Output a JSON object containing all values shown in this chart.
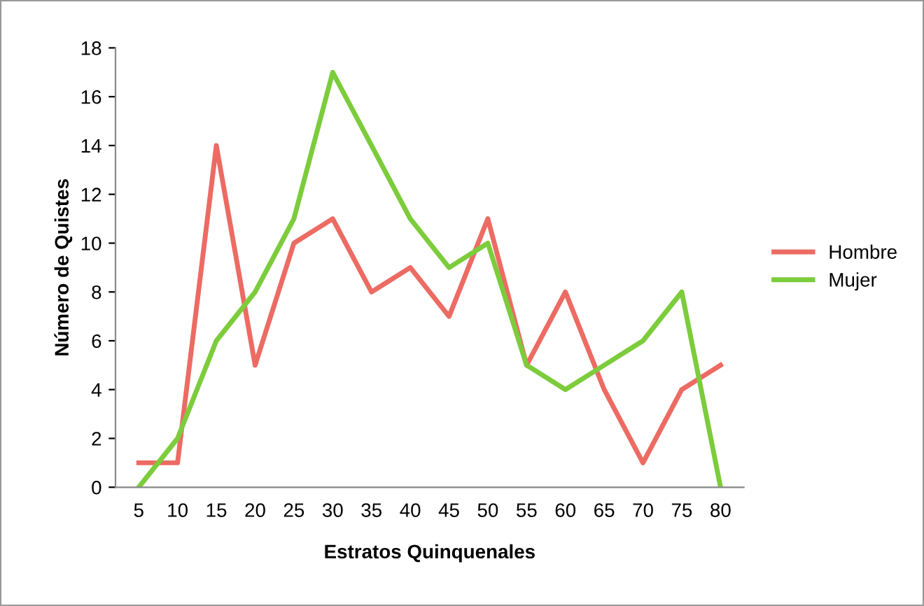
{
  "chart_data": {
    "type": "line",
    "xlabel": "Estratos Quinquenales",
    "ylabel": "Número de Quistes",
    "categories": [
      "5",
      "10",
      "15",
      "20",
      "25",
      "30",
      "35",
      "40",
      "45",
      "50",
      "55",
      "60",
      "65",
      "70",
      "75",
      "80"
    ],
    "series": [
      {
        "name": "Hombre",
        "color": "#ec6b63",
        "values": [
          1,
          1,
          14,
          5,
          10,
          11,
          8,
          9,
          7,
          11,
          5,
          8,
          4,
          1,
          4,
          5
        ]
      },
      {
        "name": "Mujer",
        "color": "#7ccc3c",
        "values": [
          0,
          2,
          6,
          8,
          11,
          17,
          14,
          11,
          9,
          10,
          5,
          4,
          5,
          6,
          8,
          0
        ]
      }
    ],
    "ylim": [
      0,
      18
    ],
    "yticks": [
      0,
      2,
      4,
      6,
      8,
      10,
      12,
      14,
      16,
      18
    ],
    "grid": false,
    "legend": "right",
    "marker": "none",
    "line_style": "solid"
  }
}
